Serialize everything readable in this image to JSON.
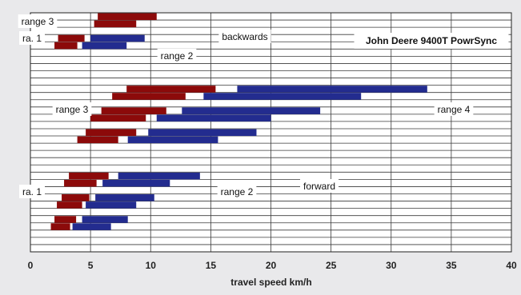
{
  "chart_data": {
    "type": "bar",
    "title": "John Deere 9400T PowrSync",
    "xlabel": "travel speed km/h",
    "ylabel": "",
    "xlim": [
      0,
      40
    ],
    "x_ticks": [
      "0",
      "5",
      "10",
      "15",
      "20",
      "25",
      "30",
      "35",
      "40"
    ],
    "grid": "horizontal and vertical",
    "colors": {
      "red": "#8c0a0a",
      "blue": "#232c8f",
      "plot_bg": "#ffffff",
      "page_bg": "#e9e9eb"
    },
    "rows": 33,
    "annotations": [
      {
        "text": "range 3",
        "row": 0
      },
      {
        "text": "ra. 1",
        "row": 2
      },
      {
        "text": "backwards",
        "row": 1.5
      },
      {
        "text": "range 2",
        "row": 4
      },
      {
        "text": "range 3",
        "row": 11
      },
      {
        "text": "range 4",
        "row": 11
      },
      {
        "text": "forward",
        "row": 21.5
      },
      {
        "text": "ra. 1",
        "row": 23
      },
      {
        "text": "range 2",
        "row": 23
      }
    ],
    "series": [
      {
        "name": "red",
        "bars": [
          {
            "row": 0,
            "start": 5.6,
            "end": 10.5
          },
          {
            "row": 1,
            "start": 5.3,
            "end": 8.8
          },
          {
            "row": 3,
            "start": 2.3,
            "end": 4.5
          },
          {
            "row": 4,
            "start": 2.0,
            "end": 3.9
          },
          {
            "row": 10,
            "start": 8.0,
            "end": 15.4
          },
          {
            "row": 11,
            "start": 6.8,
            "end": 12.9
          },
          {
            "row": 13,
            "start": 5.9,
            "end": 11.3
          },
          {
            "row": 14,
            "start": 5.0,
            "end": 9.6
          },
          {
            "row": 16,
            "start": 4.6,
            "end": 8.8
          },
          {
            "row": 17,
            "start": 3.9,
            "end": 7.3
          },
          {
            "row": 22,
            "start": 3.2,
            "end": 6.5
          },
          {
            "row": 23,
            "start": 2.8,
            "end": 5.5
          },
          {
            "row": 25,
            "start": 2.6,
            "end": 4.9
          },
          {
            "row": 26,
            "start": 2.2,
            "end": 4.3
          },
          {
            "row": 28,
            "start": 2.0,
            "end": 3.8
          },
          {
            "row": 29,
            "start": 1.7,
            "end": 3.3
          }
        ]
      },
      {
        "name": "blue",
        "bars": [
          {
            "row": 3,
            "start": 5.0,
            "end": 9.5
          },
          {
            "row": 4,
            "start": 4.3,
            "end": 8.0
          },
          {
            "row": 10,
            "start": 17.2,
            "end": 33.0
          },
          {
            "row": 11,
            "start": 14.4,
            "end": 27.5
          },
          {
            "row": 13,
            "start": 12.6,
            "end": 24.1
          },
          {
            "row": 14,
            "start": 10.5,
            "end": 20.0
          },
          {
            "row": 16,
            "start": 9.8,
            "end": 18.8
          },
          {
            "row": 17,
            "start": 8.1,
            "end": 15.6
          },
          {
            "row": 22,
            "start": 7.3,
            "end": 14.1
          },
          {
            "row": 23,
            "start": 6.0,
            "end": 11.6
          },
          {
            "row": 25,
            "start": 5.4,
            "end": 10.3
          },
          {
            "row": 26,
            "start": 4.6,
            "end": 8.8
          },
          {
            "row": 28,
            "start": 4.3,
            "end": 8.1
          },
          {
            "row": 29,
            "start": 3.5,
            "end": 6.7
          }
        ]
      }
    ]
  }
}
